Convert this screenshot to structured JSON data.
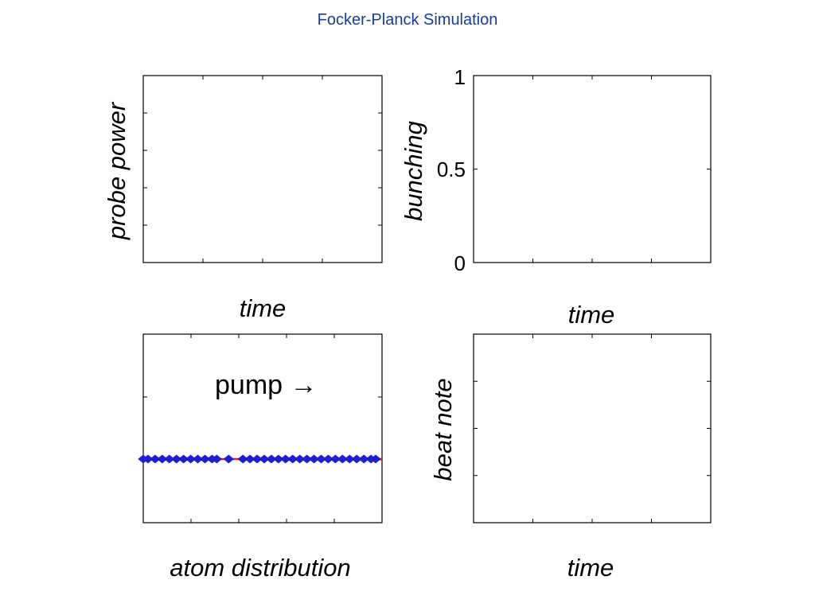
{
  "page": {
    "title": "Focker-Planck Simulation"
  },
  "colors": {
    "title": "#1a3c9c",
    "atoms": "#1f1fd0",
    "line": "#e02020",
    "axes": "#000000"
  },
  "chart_data": [
    {
      "type": "line",
      "title": "",
      "xlabel": "time",
      "ylabel": "probe power",
      "series": [],
      "xticks_shown": false,
      "yticks_shown": false
    },
    {
      "type": "line",
      "title": "",
      "xlabel": "time",
      "ylabel": "bunching",
      "ylim": [
        0,
        1
      ],
      "yticks": [
        "0",
        "0.5",
        "1"
      ],
      "series": []
    },
    {
      "type": "scatter",
      "title": "",
      "xlabel": "atom distribution",
      "ylabel": "",
      "annotation": "pump →",
      "series": [
        {
          "values": [
            0.0,
            0.02,
            0.05,
            0.08,
            0.11,
            0.14,
            0.17,
            0.2,
            0.23,
            0.26,
            0.29,
            0.31,
            0.36,
            0.42,
            0.45,
            0.48,
            0.51,
            0.54,
            0.57,
            0.6,
            0.63,
            0.66,
            0.69,
            0.72,
            0.75,
            0.78,
            0.81,
            0.84,
            0.87,
            0.9,
            0.93,
            0.96,
            0.98
          ]
        }
      ]
    },
    {
      "type": "line",
      "title": "",
      "xlabel": "time",
      "ylabel": "beat note",
      "series": []
    }
  ]
}
